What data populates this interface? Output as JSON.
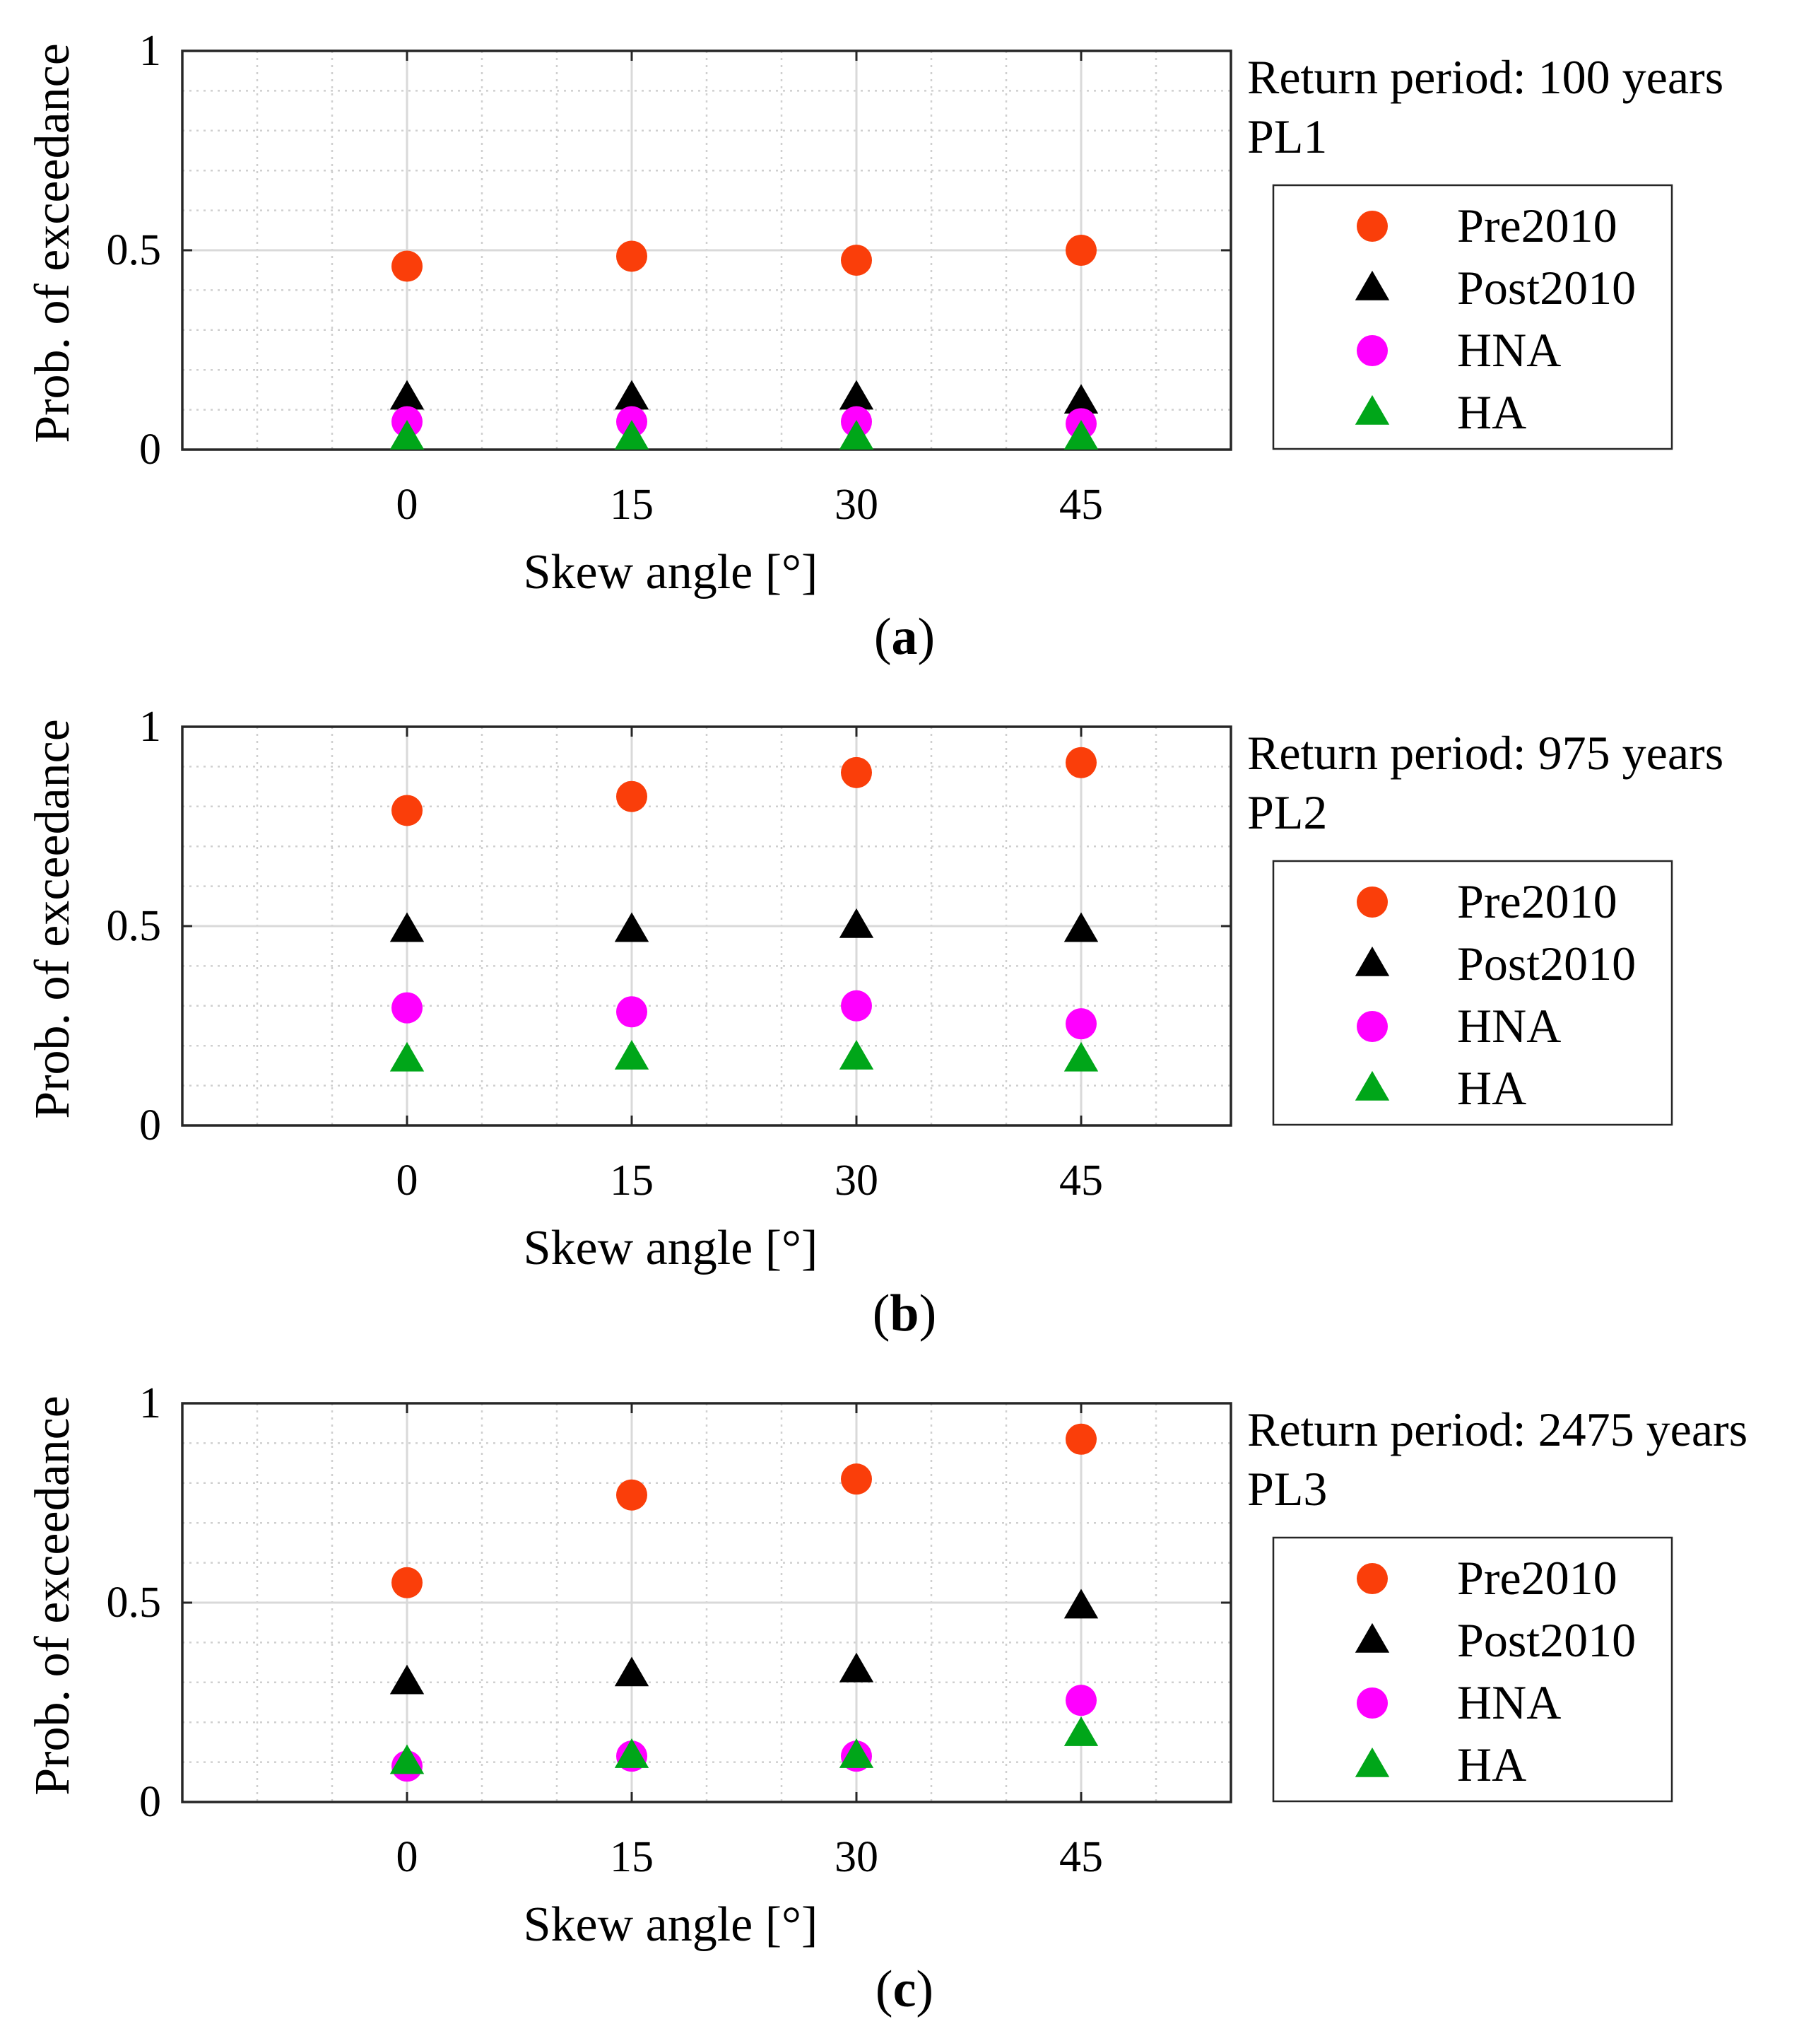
{
  "figure": {
    "subtitle_labels": [
      "a",
      "b",
      "c"
    ]
  },
  "colors": {
    "Pre2010": "#fa3e0a",
    "Post2010": "#000000",
    "HNA": "#ff00ff",
    "HA": "#00a619",
    "grid_major": "#d9d9d9",
    "grid_minor": "#cfcfcf",
    "axis": "#262626"
  },
  "chart_data": [
    {
      "type": "scatter",
      "panel": "a",
      "annotation_lines": [
        "Return period: 100 years",
        "PL1"
      ],
      "xlabel": "Skew angle [°]",
      "ylabel": "Prob. of exceedance",
      "categories": [
        "0",
        "15",
        "30",
        "45"
      ],
      "x": [
        0,
        15,
        30,
        45
      ],
      "xlim": [
        -15,
        55
      ],
      "ylim": [
        0,
        1
      ],
      "yticks": [
        0,
        0.5,
        1
      ],
      "ytick_labels": [
        "0",
        "0.5",
        "1"
      ],
      "grid": true,
      "legend_position": "right",
      "series": [
        {
          "name": "Pre2010",
          "marker": "circle",
          "values": [
            0.46,
            0.485,
            0.475,
            0.5
          ]
        },
        {
          "name": "Post2010",
          "marker": "triangle",
          "values": [
            0.13,
            0.13,
            0.13,
            0.12
          ]
        },
        {
          "name": "HNA",
          "marker": "circle",
          "values": [
            0.07,
            0.07,
            0.07,
            0.065
          ]
        },
        {
          "name": "HA",
          "marker": "triangle",
          "values": [
            0.03,
            0.03,
            0.03,
            0.03
          ]
        }
      ]
    },
    {
      "type": "scatter",
      "panel": "b",
      "annotation_lines": [
        "Return period: 975 years",
        "PL2"
      ],
      "xlabel": "Skew angle [°]",
      "ylabel": "Prob. of exceedance",
      "categories": [
        "0",
        "15",
        "30",
        "45"
      ],
      "x": [
        0,
        15,
        30,
        45
      ],
      "xlim": [
        -15,
        55
      ],
      "ylim": [
        0,
        1
      ],
      "yticks": [
        0,
        0.5,
        1
      ],
      "ytick_labels": [
        "0",
        "0.5",
        "1"
      ],
      "grid": true,
      "legend_position": "right",
      "series": [
        {
          "name": "Pre2010",
          "marker": "circle",
          "values": [
            0.79,
            0.825,
            0.885,
            0.91
          ]
        },
        {
          "name": "Post2010",
          "marker": "triangle",
          "values": [
            0.49,
            0.49,
            0.5,
            0.49
          ]
        },
        {
          "name": "HNA",
          "marker": "circle",
          "values": [
            0.295,
            0.285,
            0.3,
            0.255
          ]
        },
        {
          "name": "HA",
          "marker": "triangle",
          "values": [
            0.165,
            0.17,
            0.17,
            0.165
          ]
        }
      ]
    },
    {
      "type": "scatter",
      "panel": "c",
      "annotation_lines": [
        "Return period: 2475 years",
        "PL3"
      ],
      "xlabel": "Skew angle [°]",
      "ylabel": "Prob. of exceedance",
      "categories": [
        "0",
        "15",
        "30",
        "45"
      ],
      "x": [
        0,
        15,
        30,
        45
      ],
      "xlim": [
        -15,
        55
      ],
      "ylim": [
        0,
        1
      ],
      "yticks": [
        0,
        0.5,
        1
      ],
      "ytick_labels": [
        "0",
        "0.5",
        "1"
      ],
      "grid": true,
      "legend_position": "right",
      "series": [
        {
          "name": "Pre2010",
          "marker": "circle",
          "values": [
            0.55,
            0.77,
            0.81,
            0.91
          ]
        },
        {
          "name": "Post2010",
          "marker": "triangle",
          "values": [
            0.3,
            0.32,
            0.33,
            0.49
          ]
        },
        {
          "name": "HNA",
          "marker": "circle",
          "values": [
            0.09,
            0.115,
            0.115,
            0.255
          ]
        },
        {
          "name": "HA",
          "marker": "triangle",
          "values": [
            0.1,
            0.115,
            0.115,
            0.17
          ]
        }
      ]
    }
  ]
}
